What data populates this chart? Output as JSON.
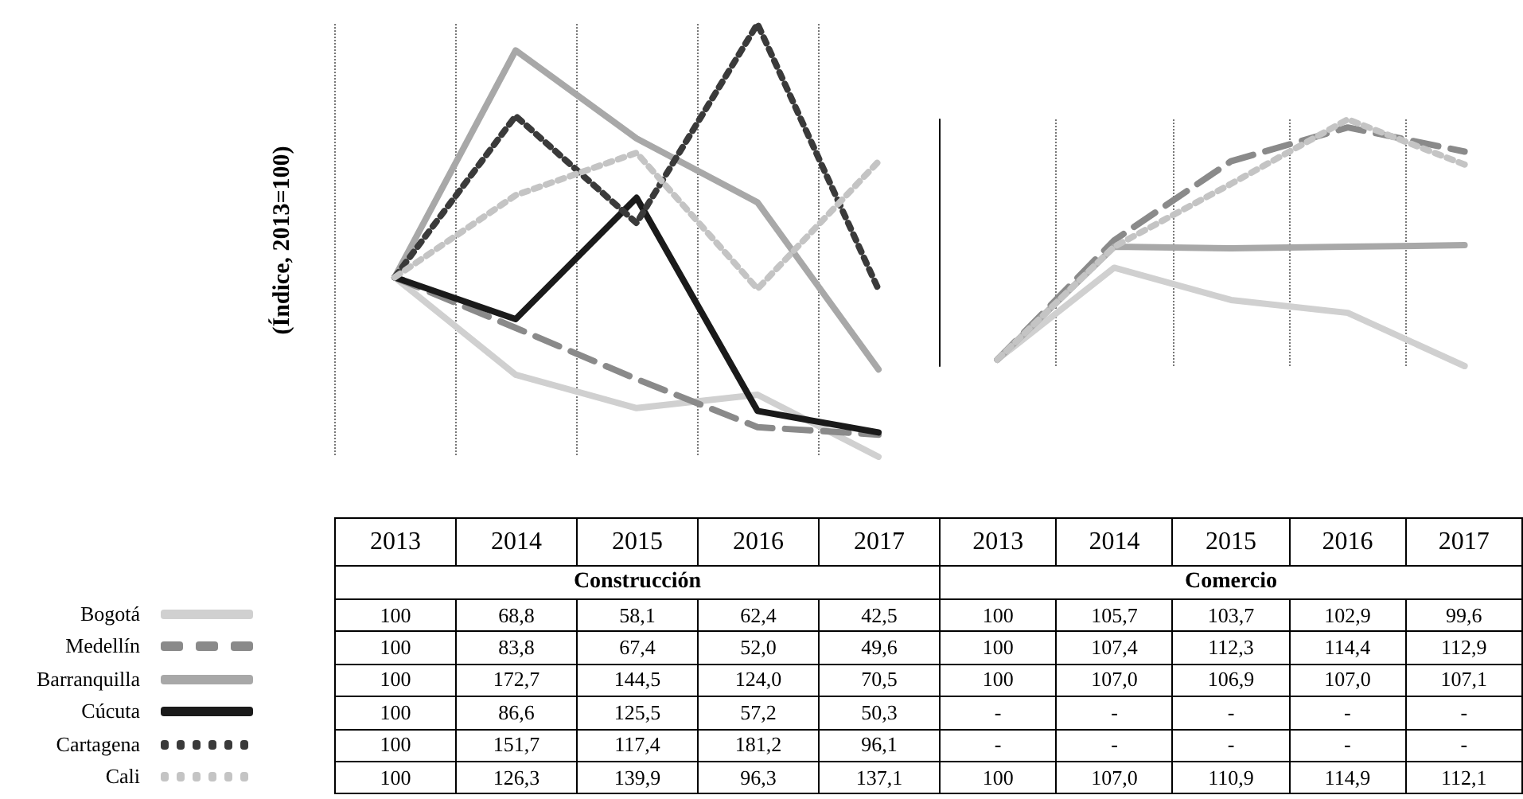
{
  "chart_data": [
    {
      "type": "line",
      "title": "Construcción",
      "ylabel": "(Índice, 2013=100)",
      "categories": [
        "2013",
        "2014",
        "2015",
        "2016",
        "2017"
      ],
      "grid": "x",
      "tick_labels": "x",
      "legend": "bottom left",
      "series": [
        {
          "name": "Bogotá",
          "color": "#d0d0d0",
          "line_style": "solid",
          "values": [
            100,
            68.8,
            58.1,
            62.4,
            42.5
          ],
          "value_labels": [
            "100",
            "68,8",
            "58,1",
            "62,4",
            "42,5"
          ]
        },
        {
          "name": "Medellín",
          "color": "#8a8a8a",
          "line_style": "dashed",
          "values": [
            100,
            83.8,
            67.4,
            52.0,
            49.6
          ],
          "value_labels": [
            "100",
            "83,8",
            "67,4",
            "52,0",
            "49,6"
          ]
        },
        {
          "name": "Barranquilla",
          "color": "#a8a8a8",
          "line_style": "solid",
          "values": [
            100,
            172.7,
            144.5,
            124.0,
            70.5
          ],
          "value_labels": [
            "100",
            "172,7",
            "144,5",
            "124,0",
            "70,5"
          ]
        },
        {
          "name": "Cúcuta",
          "color": "#1a1a1a",
          "line_style": "solid",
          "values": [
            100,
            86.6,
            125.5,
            57.2,
            50.3
          ],
          "value_labels": [
            "100",
            "86,6",
            "125,5",
            "57,2",
            "50,3"
          ]
        },
        {
          "name": "Cartagena",
          "color": "#3a3a3a",
          "line_style": "dotted",
          "values": [
            100,
            151.7,
            117.4,
            181.2,
            96.1
          ],
          "value_labels": [
            "100",
            "151,7",
            "117,4",
            "181,2",
            "96,1"
          ]
        },
        {
          "name": "Cali",
          "color": "#c4c4c4",
          "line_style": "dotted",
          "values": [
            100,
            126.3,
            139.9,
            96.3,
            137.1
          ],
          "value_labels": [
            "100",
            "126,3",
            "139,9",
            "96,3",
            "137,1"
          ]
        }
      ]
    },
    {
      "type": "line",
      "title": "Comercio",
      "categories": [
        "2013",
        "2014",
        "2015",
        "2016",
        "2017"
      ],
      "grid": "x",
      "tick_labels": "x",
      "series": [
        {
          "color": "#d0d0d0",
          "line_style": "solid",
          "values": [
            100,
            105.7,
            103.7,
            102.9,
            99.6
          ],
          "value_labels": [
            "100",
            "105,7",
            "103,7",
            "102,9",
            "99,6"
          ]
        },
        {
          "color": "#8a8a8a",
          "line_style": "dashed",
          "values": [
            100,
            107.4,
            112.3,
            114.4,
            112.9
          ],
          "value_labels": [
            "100",
            "107,4",
            "112,3",
            "114,4",
            "112,9"
          ]
        },
        {
          "color": "#a8a8a8",
          "line_style": "solid",
          "values": [
            100,
            107.0,
            106.9,
            107.0,
            107.1
          ],
          "value_labels": [
            "100",
            "107,0",
            "106,9",
            "107,0",
            "107,1"
          ]
        },
        {
          "color": "#1a1a1a",
          "line_style": "solid",
          "values": [
            null,
            null,
            null,
            null,
            null
          ],
          "value_labels": [
            "-",
            "-",
            "-",
            "-",
            "-"
          ]
        },
        {
          "color": "#3a3a3a",
          "line_style": "dotted",
          "values": [
            null,
            null,
            null,
            null,
            null
          ],
          "value_labels": [
            "-",
            "-",
            "-",
            "-",
            "-"
          ]
        },
        {
          "color": "#c4c4c4",
          "line_style": "dotted",
          "values": [
            100,
            107.0,
            110.9,
            114.9,
            112.1
          ],
          "value_labels": [
            "100",
            "107,0",
            "110,9",
            "114,9",
            "112,1"
          ]
        }
      ]
    }
  ]
}
